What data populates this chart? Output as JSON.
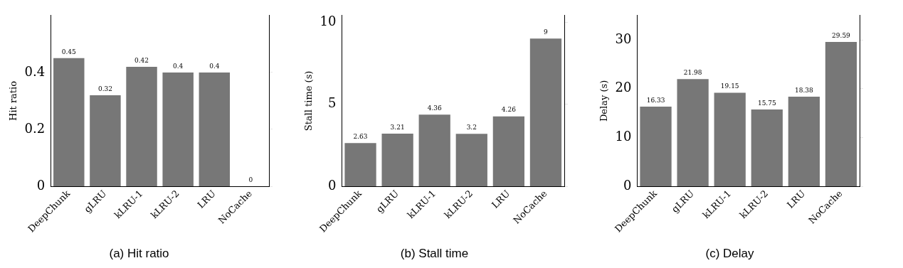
{
  "chart_data": [
    {
      "type": "bar",
      "title": "(a) Hit ratio",
      "ylabel": "Hit ratio",
      "categories": [
        "DeepChunk",
        "gLRU",
        "kLRU-1",
        "kLRU-2",
        "LRU",
        "NoCache"
      ],
      "values": [
        0.45,
        0.32,
        0.42,
        0.4,
        0.4,
        0
      ],
      "color": "#777777",
      "ylim": [
        0,
        0.6
      ],
      "yticks": [
        0,
        0.2,
        0.4
      ],
      "data_labels": true,
      "grid": false,
      "legend": false
    },
    {
      "type": "bar",
      "title": "(b) Stall time",
      "ylabel": "Stall time (s)",
      "categories": [
        "DeepChunk",
        "gLRU",
        "kLRU-1",
        "kLRU-2",
        "LRU",
        "NoCache"
      ],
      "values": [
        2.63,
        3.21,
        4.36,
        3.2,
        4.26,
        9
      ],
      "color": "#777777",
      "ylim": [
        0,
        10.4
      ],
      "yticks": [
        0,
        5,
        10
      ],
      "data_labels": true,
      "grid": false,
      "legend": false
    },
    {
      "type": "bar",
      "title": "(c) Delay",
      "ylabel": "Delay (s)",
      "categories": [
        "DeepChunk",
        "gLRU",
        "kLRU-1",
        "kLRU-2",
        "LRU",
        "NoCache"
      ],
      "values": [
        16.33,
        21.98,
        19.15,
        15.75,
        18.38,
        29.59
      ],
      "color": "#777777",
      "ylim": [
        0,
        35
      ],
      "yticks": [
        0,
        10,
        20,
        30
      ],
      "data_labels": true,
      "grid": false,
      "legend": false
    }
  ]
}
